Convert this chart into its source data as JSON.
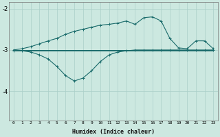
{
  "xlabel": "Humidex (Indice chaleur)",
  "x": [
    0,
    1,
    2,
    3,
    4,
    5,
    6,
    7,
    8,
    9,
    10,
    11,
    12,
    13,
    14,
    15,
    16,
    17,
    18,
    19,
    20,
    21,
    22,
    23
  ],
  "y_main": [
    -3.0,
    -2.97,
    -2.92,
    -2.85,
    -2.78,
    -2.72,
    -2.62,
    -2.55,
    -2.5,
    -2.45,
    -2.4,
    -2.38,
    -2.35,
    -2.3,
    -2.38,
    -2.22,
    -2.2,
    -2.3,
    -2.72,
    -2.95,
    -2.97,
    -2.78,
    -2.78,
    -2.97
  ],
  "y_low": [
    -3.02,
    -3.02,
    -3.05,
    -3.12,
    -3.22,
    -3.4,
    -3.62,
    -3.75,
    -3.68,
    -3.5,
    -3.28,
    -3.12,
    -3.05,
    -3.02,
    -3.0,
    -3.0,
    -3.0,
    -3.0,
    -3.0,
    -3.0,
    -3.0,
    -3.0,
    -3.0,
    -3.0
  ],
  "y_flat1": [
    -3.0,
    -3.0,
    -3.0,
    -3.0,
    -3.0,
    -3.0,
    -3.0,
    -3.0,
    -3.0,
    -3.0,
    -3.0,
    -3.0,
    -3.0,
    -3.0,
    -3.0,
    -3.0,
    -3.0,
    -3.0,
    -3.0,
    -3.0,
    -3.0,
    -3.0,
    -3.0,
    -3.0
  ],
  "y_flat2": [
    -3.02,
    -3.02,
    -3.02,
    -3.02,
    -3.02,
    -3.02,
    -3.02,
    -3.02,
    -3.02,
    -3.02,
    -3.02,
    -3.02,
    -3.02,
    -3.02,
    -3.02,
    -3.02,
    -3.02,
    -3.02,
    -3.02,
    -3.02,
    -3.02,
    -3.02,
    -3.02,
    -3.02
  ],
  "line_color": "#1a6b6b",
  "bg_color": "#cce8e0",
  "grid_color": "#aacfc8",
  "ylim": [
    -4.7,
    -1.85
  ],
  "yticks": [
    -4.0,
    -3.0,
    -2.0
  ],
  "xlim": [
    -0.5,
    23.5
  ],
  "xtick_labels": [
    "0",
    "1",
    "2",
    "3",
    "4",
    "5",
    "6",
    "7",
    "8",
    "9",
    "10",
    "11",
    "12",
    "13",
    "14",
    "15",
    "16",
    "17",
    "18",
    "19",
    "20",
    "21",
    "22",
    "23"
  ]
}
